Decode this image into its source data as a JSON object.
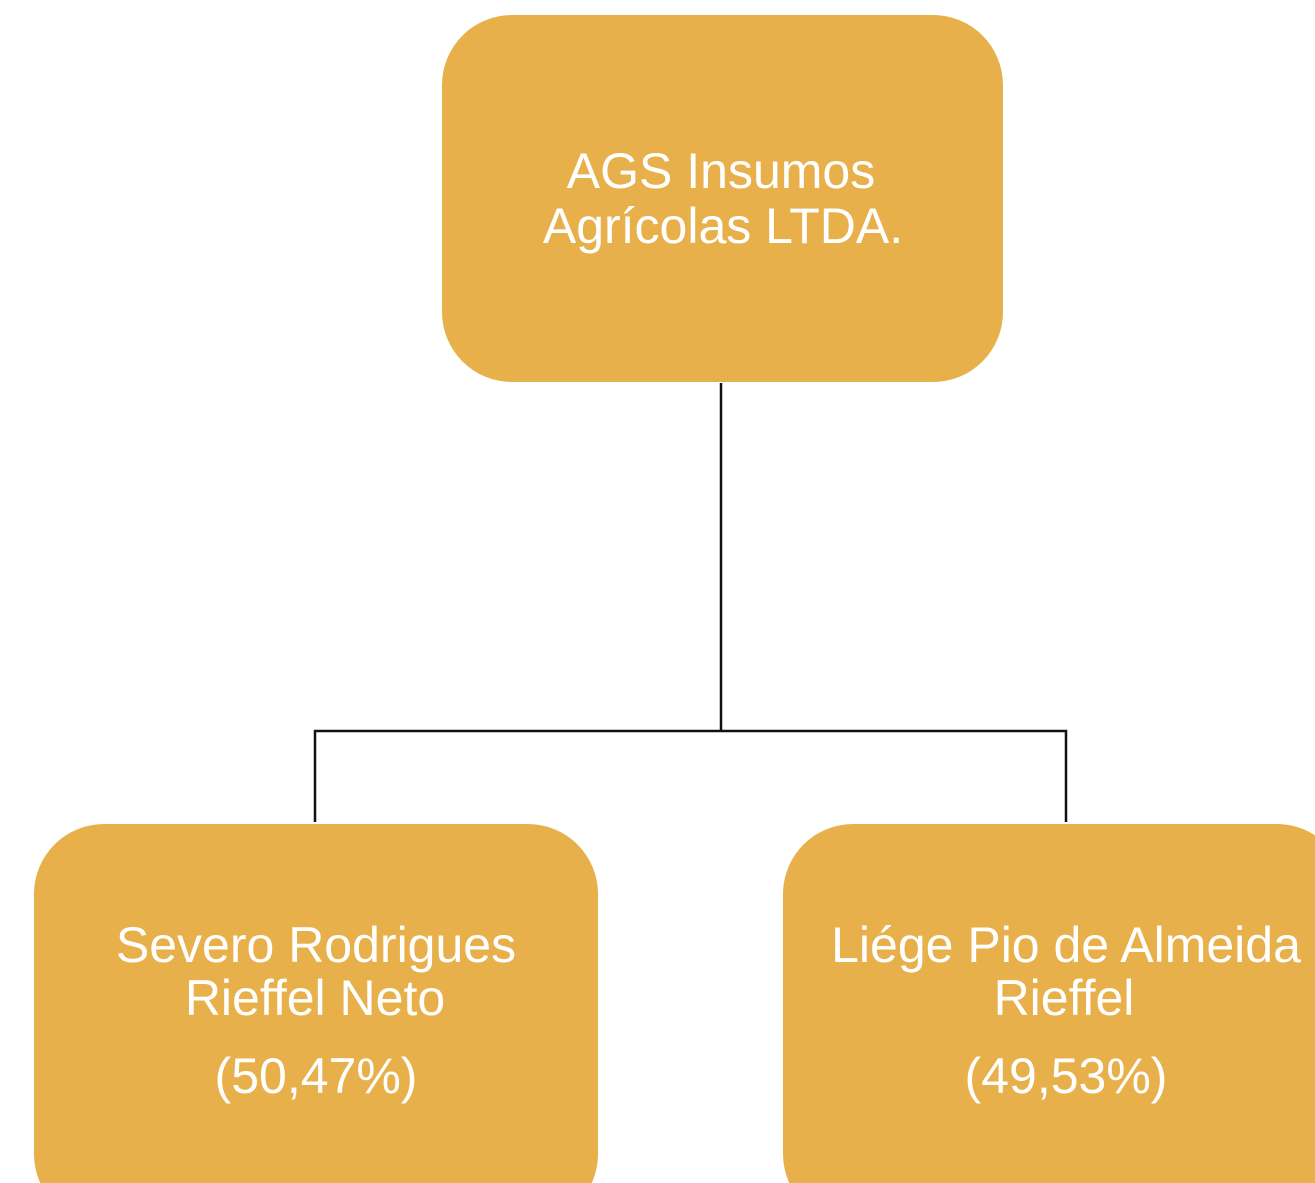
{
  "nodes": [
    {
      "lines": [
        "AGS Insumos",
        "Agrícolas LTDA."
      ]
    },
    {
      "lines": [
        "Severo Rodrigues",
        "Rieffel Neto"
      ],
      "share": "(50,47%)"
    },
    {
      "lines": [
        "Liége Pio de Almeida",
        "Rieffel"
      ],
      "share": "(49,53%)"
    }
  ]
}
